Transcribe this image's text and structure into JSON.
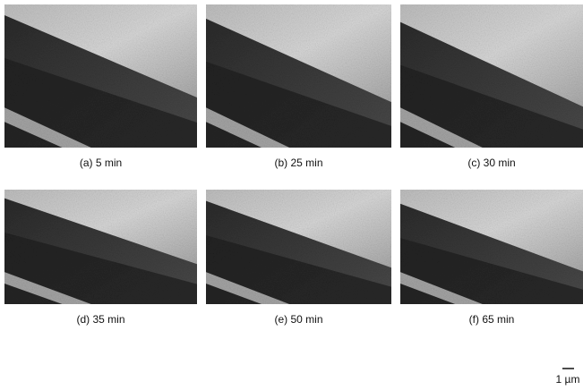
{
  "panels": [
    {
      "label": "(a) 5 min"
    },
    {
      "label": "(b) 25 min"
    },
    {
      "label": "(c) 30 min"
    },
    {
      "label": "(d) 35 min"
    },
    {
      "label": "(e) 50 min"
    },
    {
      "label": "(f) 65 min"
    }
  ],
  "scale_bar": {
    "label": "1 µm"
  }
}
